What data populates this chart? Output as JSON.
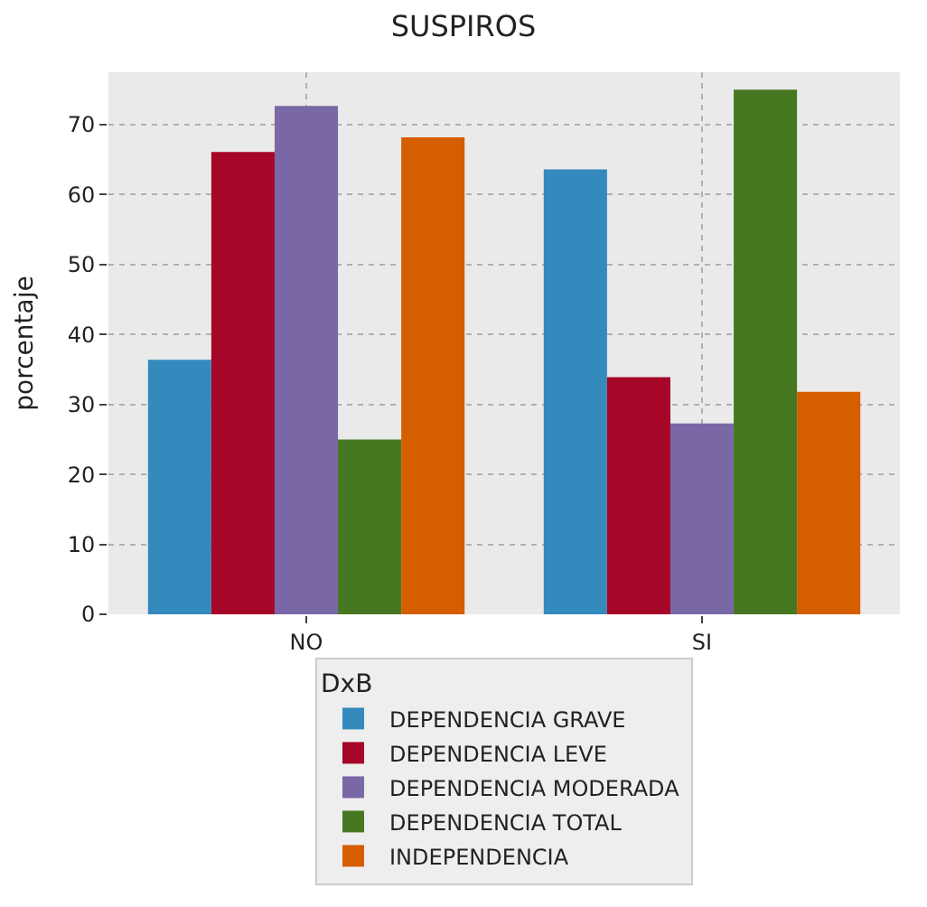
{
  "chart_data": {
    "type": "bar",
    "title": "SUSPIROS",
    "ylabel": "porcentaje",
    "legend_title": "DxB",
    "categories": [
      "NO",
      "SI"
    ],
    "series": [
      {
        "name": "DEPENDENCIA GRAVE",
        "color": "#348abd",
        "values": [
          36.4,
          63.6
        ]
      },
      {
        "name": "DEPENDENCIA LEVE",
        "color": "#a60628",
        "values": [
          66.1,
          33.9
        ]
      },
      {
        "name": "DEPENDENCIA MODERADA",
        "color": "#7a68a6",
        "values": [
          72.7,
          27.3
        ]
      },
      {
        "name": "DEPENDENCIA TOTAL",
        "color": "#467821",
        "values": [
          25.0,
          75.0
        ]
      },
      {
        "name": "INDEPENDENCIA",
        "color": "#d55e00",
        "values": [
          68.2,
          31.8
        ]
      }
    ],
    "ylim": [
      0,
      77.5
    ],
    "yticks": [
      0,
      10,
      20,
      30,
      40,
      50,
      60,
      70
    ],
    "grid": true,
    "legend": "bottom"
  }
}
